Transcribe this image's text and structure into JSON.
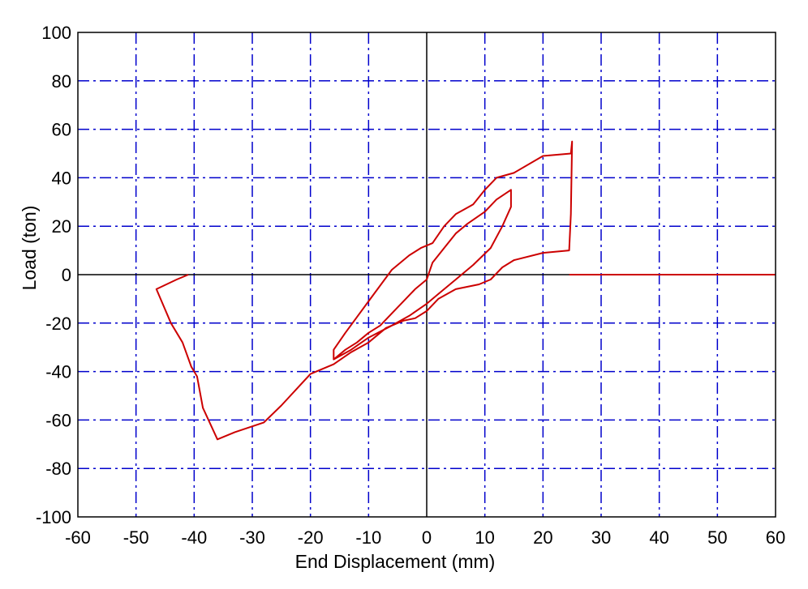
{
  "chart_data": {
    "type": "line",
    "title": "",
    "xlabel": "End Displacement (mm)",
    "ylabel": "Load (ton)",
    "xlim": [
      -60,
      60
    ],
    "ylim": [
      -100,
      100
    ],
    "xticks": [
      -60,
      -50,
      -40,
      -30,
      -20,
      -10,
      0,
      10,
      20,
      30,
      40,
      50,
      60
    ],
    "yticks": [
      -100,
      -80,
      -60,
      -40,
      -20,
      0,
      20,
      40,
      60,
      80,
      100
    ],
    "xtick_labels": [
      "-60",
      "-50",
      "-40",
      "-30",
      "-20",
      "-10",
      "0",
      "10",
      "20",
      "30",
      "40",
      "50",
      "60"
    ],
    "ytick_labels": [
      "-100",
      "-80",
      "-60",
      "-40",
      "-20",
      "0",
      "20",
      "40",
      "60",
      "80",
      "100"
    ],
    "grid": true,
    "colors": {
      "series": "#cc0000",
      "grid": "#0000cc",
      "zero_axes": "#000000",
      "frame": "#000000"
    },
    "series": [
      {
        "x": [
          -41,
          -43,
          -46.5,
          -44,
          -42,
          -40.5,
          -39.5,
          -38.5,
          -36,
          -33,
          -28,
          -25,
          -20,
          -16,
          -13,
          -10,
          -7,
          -4,
          -2,
          0,
          2,
          5,
          9,
          11,
          13,
          15,
          20,
          24.5,
          24.8,
          25,
          24.8,
          20,
          15,
          12,
          10,
          8,
          5,
          3,
          1,
          -1,
          -3,
          -6,
          -10,
          -14,
          -16,
          -16,
          -13,
          -10,
          -6,
          -3,
          0,
          2,
          5,
          8,
          11,
          13,
          14.5,
          14.5,
          12,
          10,
          7,
          5,
          3,
          1,
          0,
          -2,
          -4,
          -6,
          -8,
          -10,
          -12,
          -14,
          -16
        ],
        "y": [
          0,
          -2,
          -6,
          -20,
          -28,
          -38,
          -42,
          -55,
          -68,
          -65,
          -61,
          -54,
          -41,
          -37,
          -32,
          -28,
          -22,
          -19,
          -18,
          -15,
          -10,
          -6,
          -4,
          -2,
          3,
          6,
          9,
          10,
          25,
          55,
          50,
          49,
          42,
          40,
          35,
          29,
          25,
          20,
          13,
          11,
          8,
          2,
          -11,
          -24,
          -31,
          -35,
          -31,
          -26,
          -21,
          -17,
          -12,
          -8,
          -2,
          4,
          11,
          20,
          28,
          35,
          31,
          26,
          21,
          17,
          11,
          5,
          -2,
          -6,
          -11,
          -16,
          -21,
          -24,
          -28,
          -31,
          -35
        ]
      },
      {
        "x": [
          24.5,
          60
        ],
        "y": [
          0,
          0
        ]
      }
    ]
  }
}
